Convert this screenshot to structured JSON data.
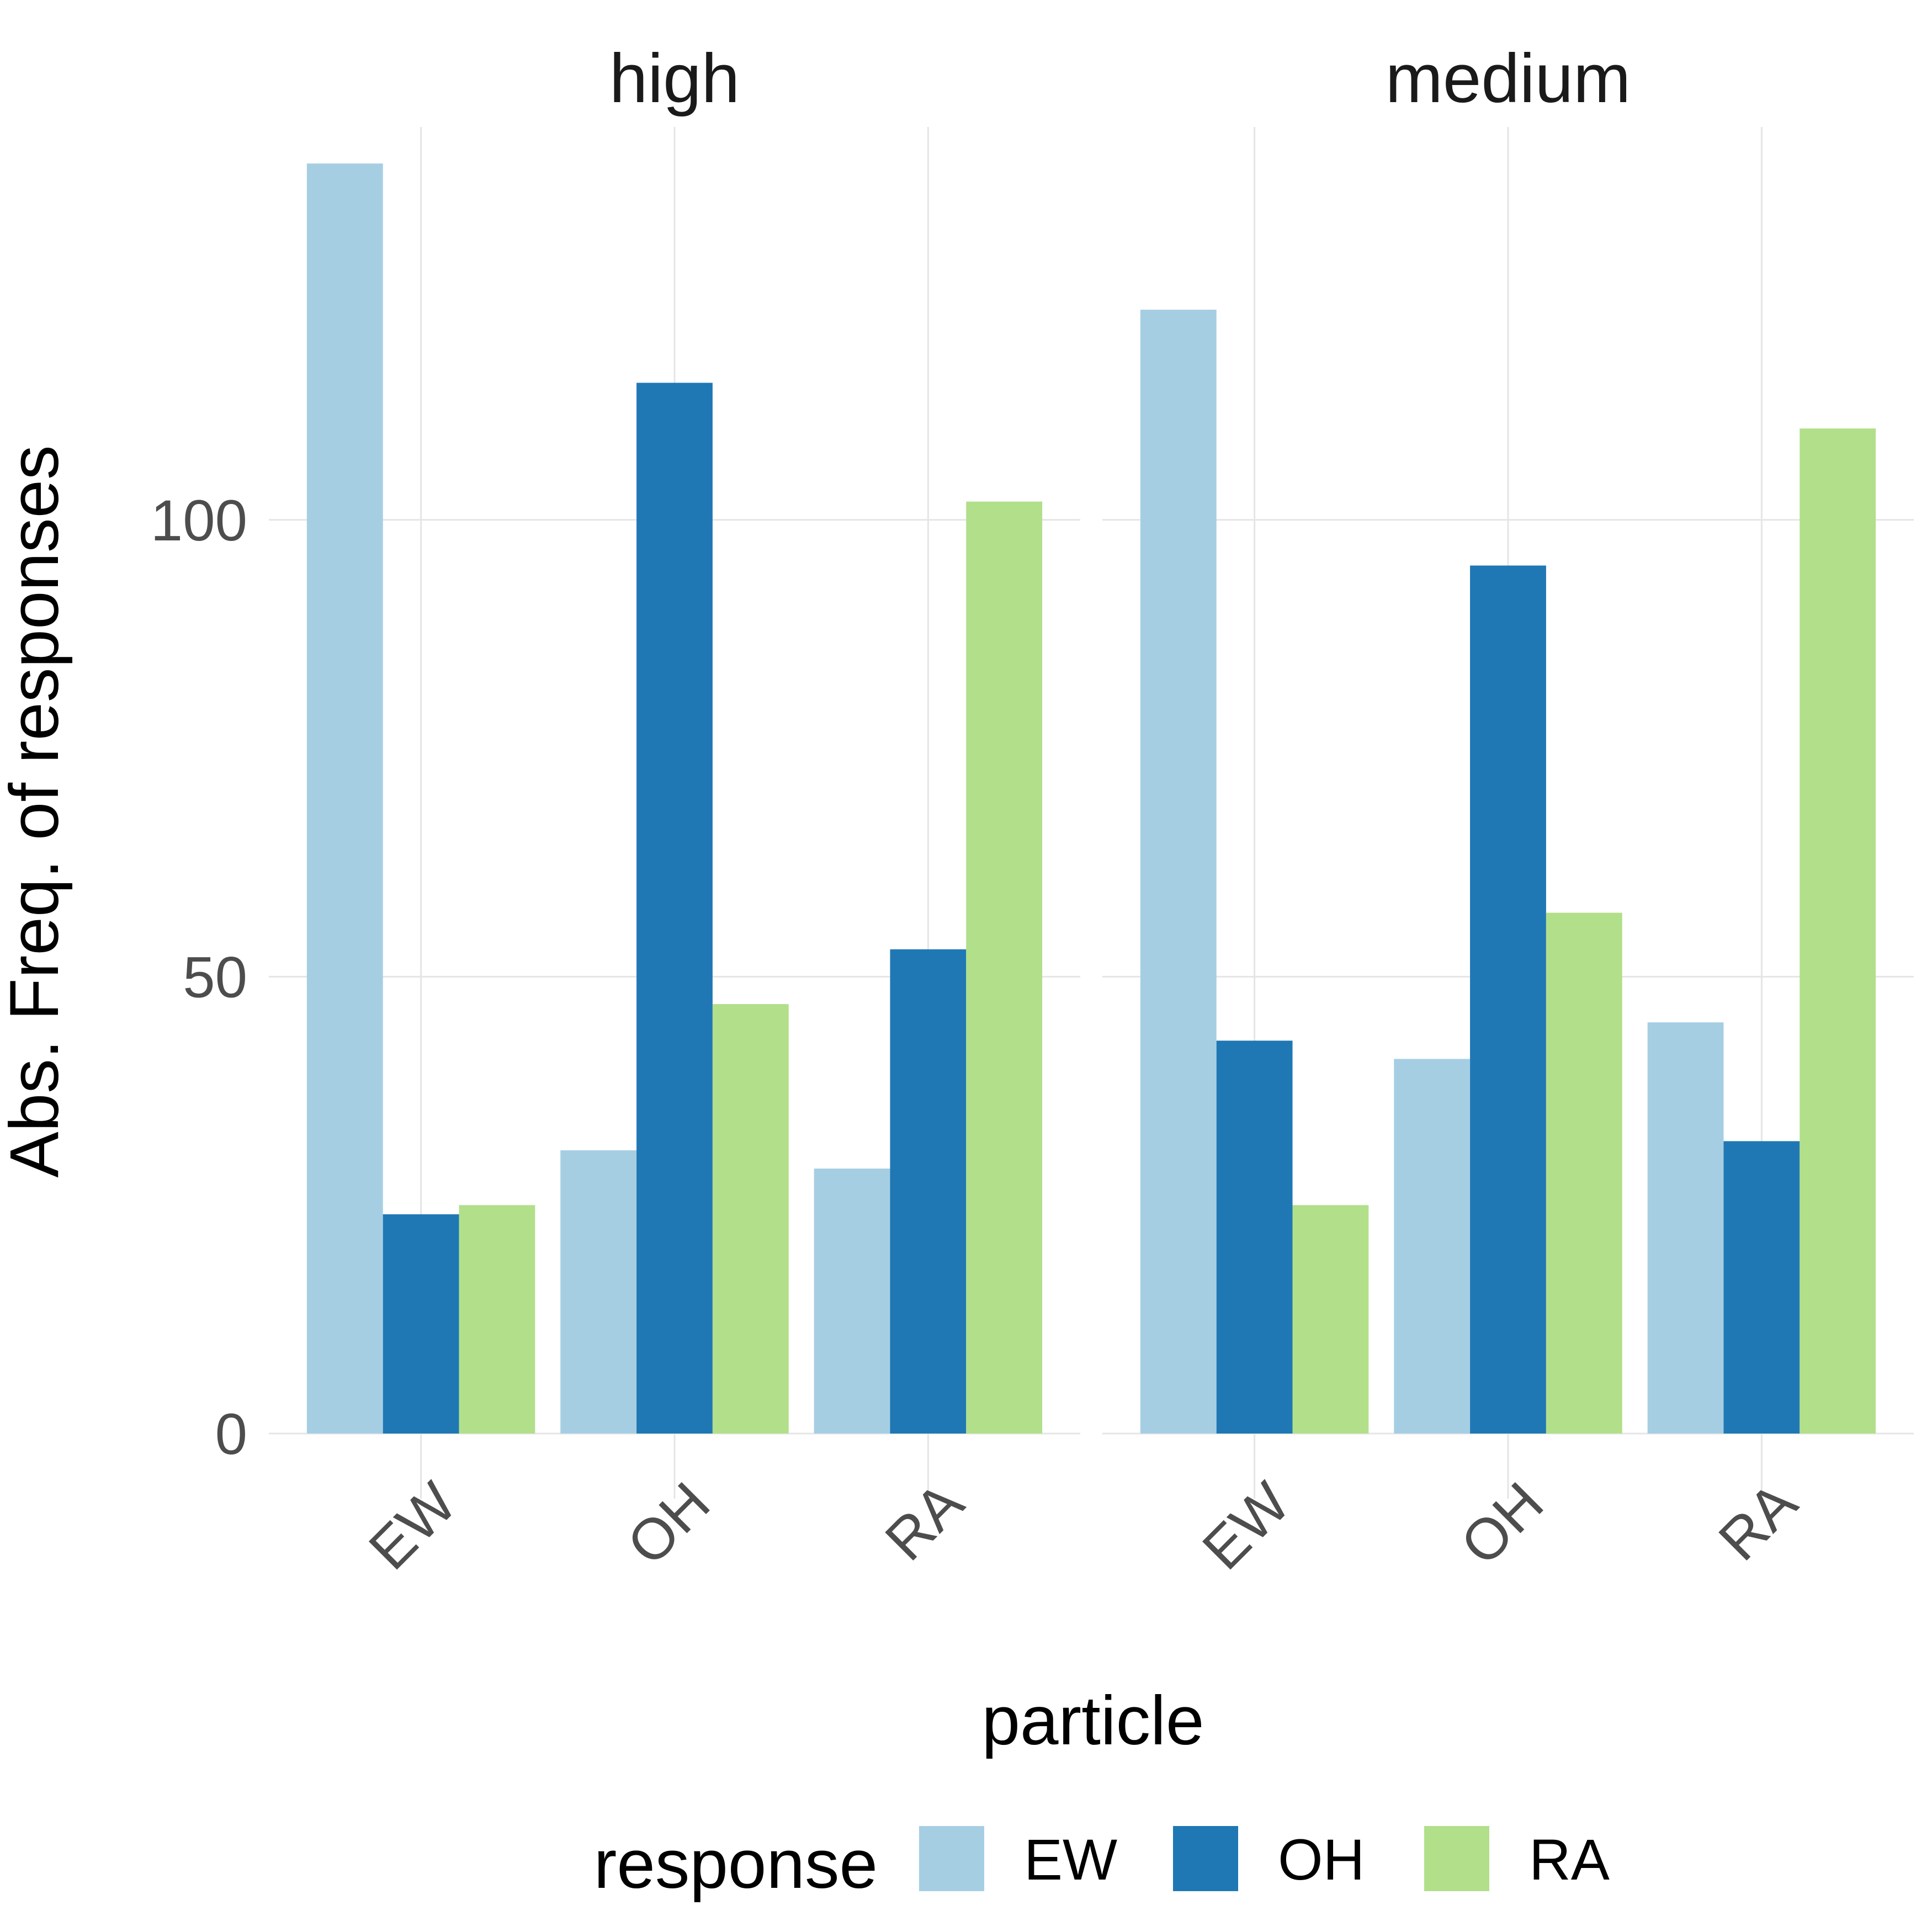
{
  "chart_data": {
    "type": "bar",
    "facets": [
      "high",
      "medium"
    ],
    "categories": [
      "EW",
      "OH",
      "RA"
    ],
    "series": [
      {
        "name": "EW",
        "color": "#a6cee3",
        "values": {
          "high": [
            139,
            31,
            29
          ],
          "medium": [
            123,
            41,
            45
          ]
        }
      },
      {
        "name": "OH",
        "color": "#1f78b4",
        "values": {
          "high": [
            24,
            115,
            53
          ],
          "medium": [
            43,
            95,
            32
          ]
        }
      },
      {
        "name": "RA",
        "color": "#b2df8a",
        "values": {
          "high": [
            25,
            47,
            102
          ],
          "medium": [
            25,
            57,
            110
          ]
        }
      }
    ],
    "xlabel": "particle",
    "ylabel": "Abs. Freq. of responses",
    "ylim": [
      0,
      143
    ],
    "yticks": [
      0,
      50,
      100
    ],
    "legend_title": "response",
    "legend_position": "bottom",
    "grid": true
  }
}
